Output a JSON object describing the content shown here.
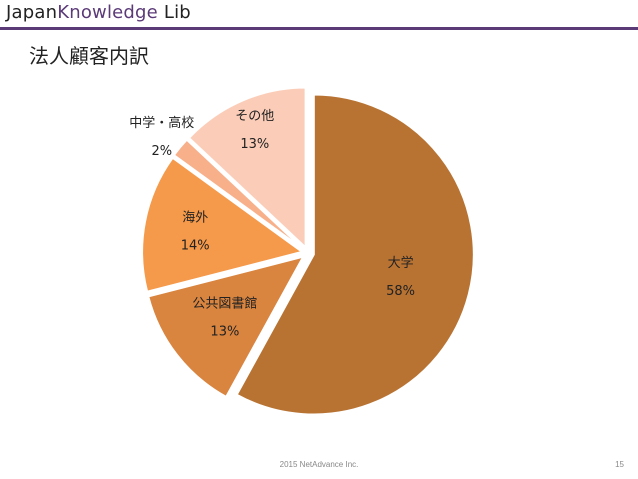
{
  "header": {
    "logo_part1": "Japan",
    "logo_part2": "Knowledge",
    "logo_part3": " Lib",
    "accent_color": "#5b3a78"
  },
  "title": "法人顧客内訳",
  "chart_data": {
    "type": "pie",
    "title": "",
    "slices": [
      {
        "name": "大学",
        "value": 58,
        "label": "58%",
        "color": "#b87333"
      },
      {
        "name": "公共図書館",
        "value": 13,
        "label": "13%",
        "color": "#d9843f"
      },
      {
        "name": "海外",
        "value": 14,
        "label": "14%",
        "color": "#f5994a"
      },
      {
        "name": "中学・高校",
        "value": 2,
        "label": "2%",
        "color": "#f7b08a"
      },
      {
        "name": "その他",
        "value": 13,
        "label": "13%",
        "color": "#fbcdb8"
      }
    ],
    "start_angle_deg": 0,
    "direction": "clockwise",
    "exploded": true,
    "legend": "none"
  },
  "footer": {
    "copyright": "2015 NetAdvance Inc.",
    "page_number": "15"
  }
}
